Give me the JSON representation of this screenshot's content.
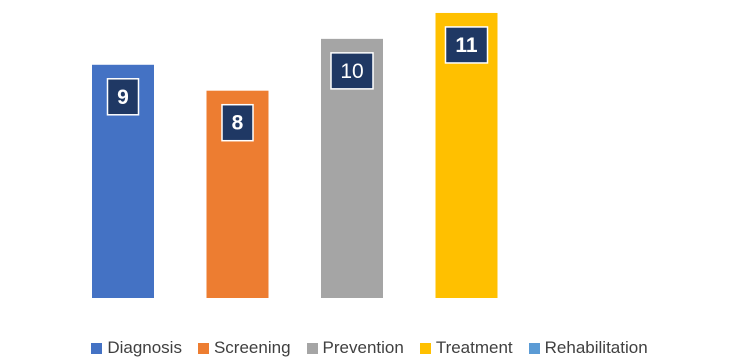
{
  "chart_data": {
    "type": "bar",
    "title": "",
    "xlabel": "",
    "ylabel": "",
    "categories": [
      "Diagnosis",
      "Screening",
      "Prevention",
      "Treatment",
      "Rehabilitation"
    ],
    "values": [
      9,
      8,
      10,
      11,
      null
    ],
    "ylim": [
      0,
      11.5
    ],
    "grid": false,
    "legend_position": "bottom",
    "data_labels": [
      "9",
      "8",
      "10",
      "11",
      ""
    ],
    "colors": [
      "#4472C4",
      "#ED7D31",
      "#A5A5A5",
      "#FFC000",
      "#5B9BD5"
    ],
    "label_box_color": "#1F3864",
    "label_text_color": "#ffffff"
  }
}
